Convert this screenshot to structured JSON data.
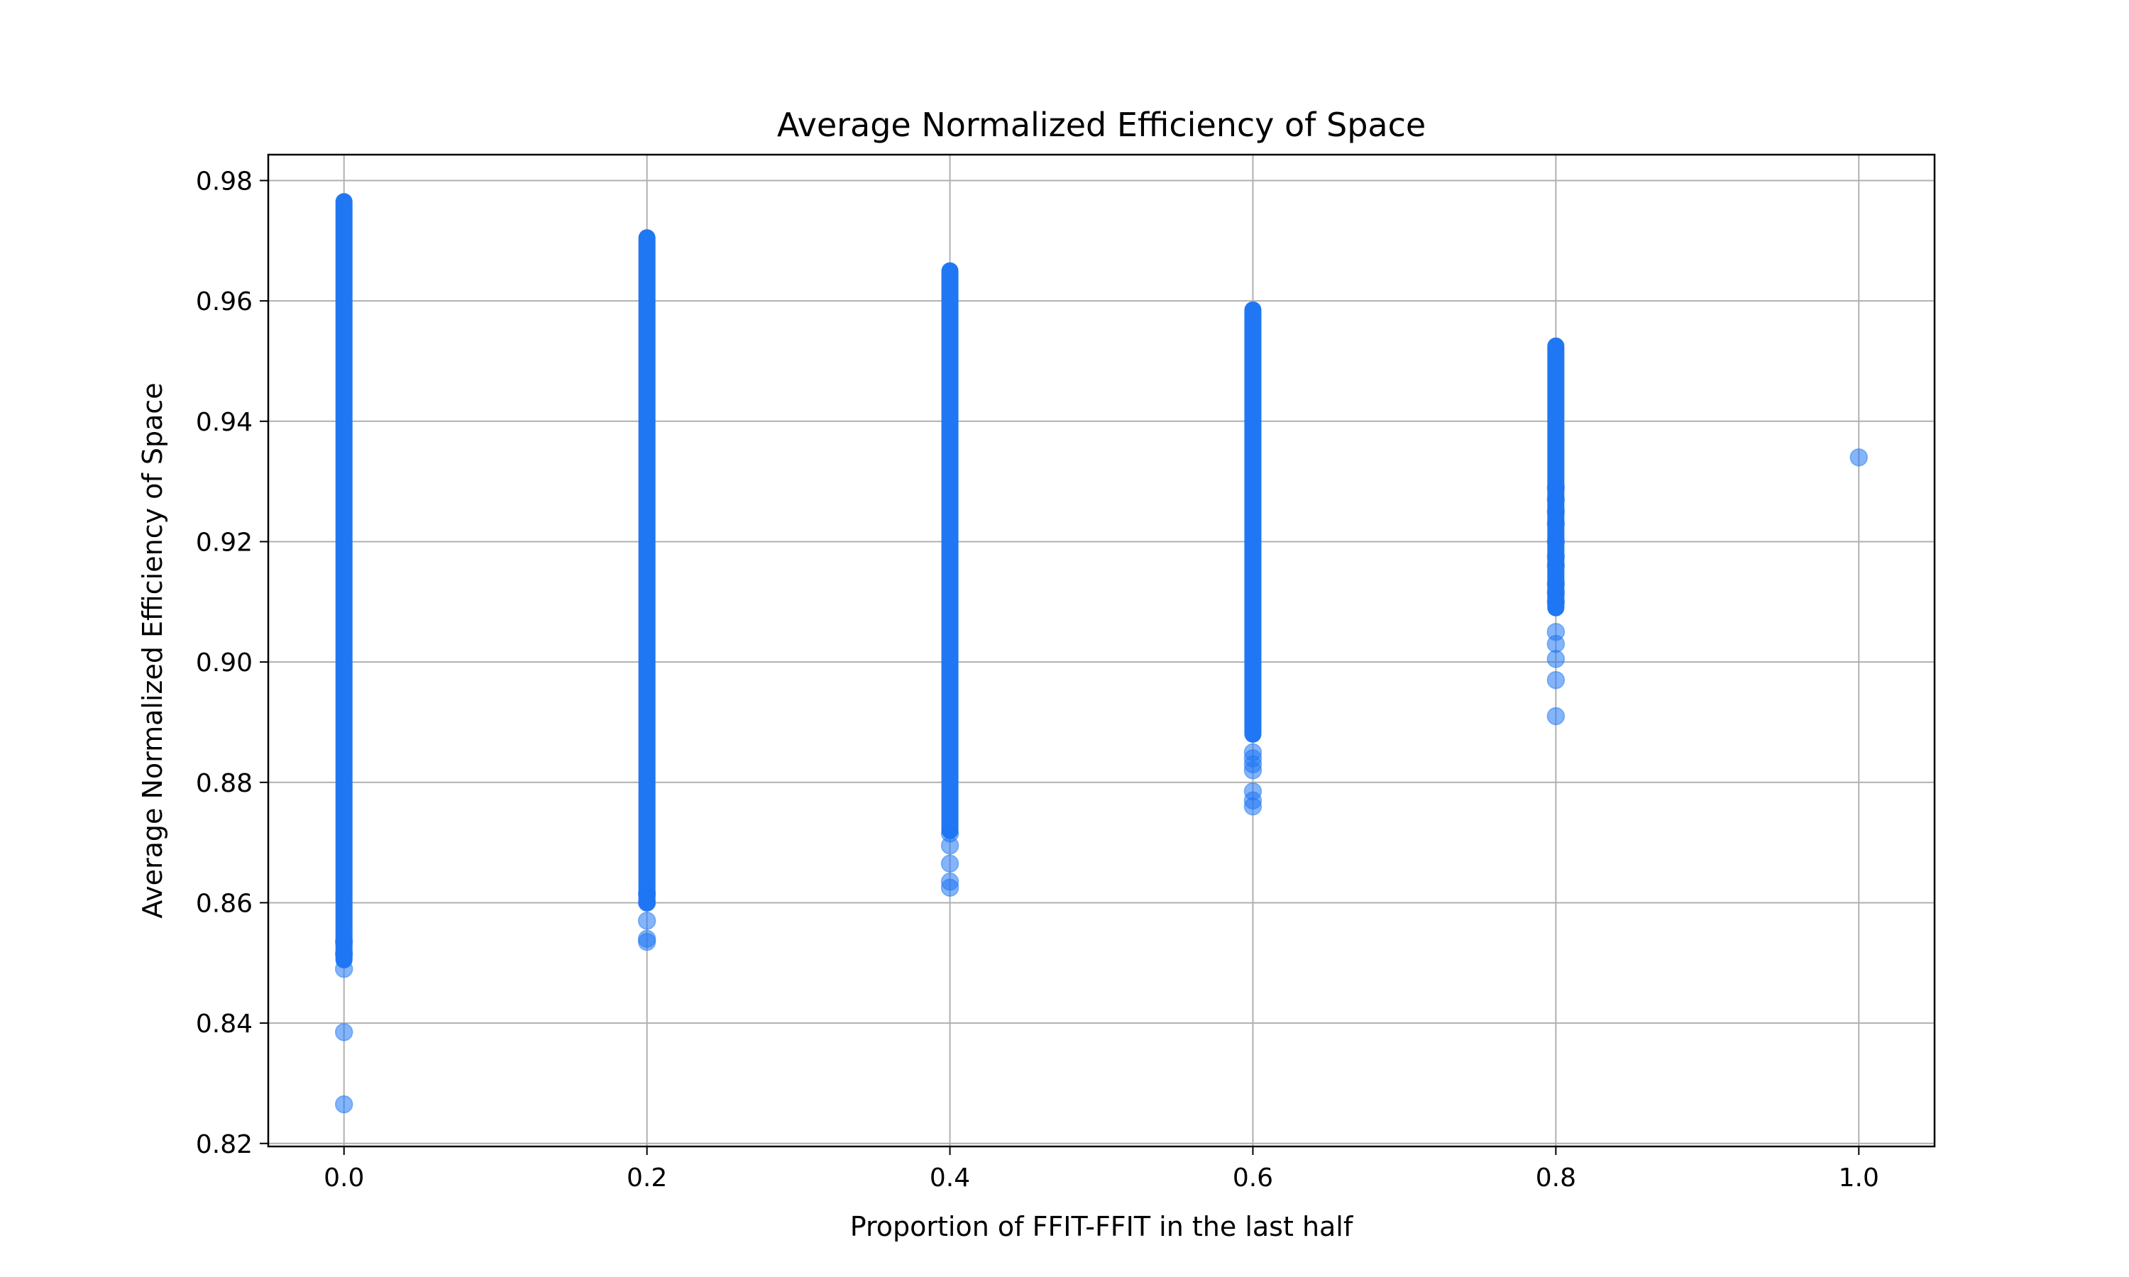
{
  "chart_data": {
    "type": "scatter",
    "title": "Average Normalized Efficiency of Space",
    "xlabel": "Proportion of FFIT-FFIT in the last half",
    "ylabel": "Average Normalized Efficiency of Space",
    "xlim": [
      -0.05,
      1.05
    ],
    "ylim": [
      0.8195,
      0.9843
    ],
    "x_ticks": [
      0.0,
      0.2,
      0.4,
      0.6,
      0.8,
      1.0
    ],
    "x_tick_labels": [
      "0.0",
      "0.2",
      "0.4",
      "0.6",
      "0.8",
      "1.0"
    ],
    "y_ticks": [
      0.82,
      0.84,
      0.86,
      0.88,
      0.9,
      0.92,
      0.94,
      0.96,
      0.98
    ],
    "y_tick_labels": [
      "0.82",
      "0.84",
      "0.86",
      "0.88",
      "0.90",
      "0.92",
      "0.94",
      "0.96",
      "0.98"
    ],
    "grid": true,
    "marker_color": "#1f77f4",
    "marker_alpha": 0.55,
    "groups": [
      {
        "x": 0.0,
        "dense_range": [
          0.8505,
          0.9765
        ],
        "outliers": [
          0.8265,
          0.8385,
          0.849,
          0.8515,
          0.8535
        ]
      },
      {
        "x": 0.2,
        "dense_range": [
          0.86,
          0.9705
        ],
        "outliers": [
          0.8535,
          0.854,
          0.857,
          0.86,
          0.8615
        ]
      },
      {
        "x": 0.4,
        "dense_range": [
          0.872,
          0.965
        ],
        "outliers": [
          0.8625,
          0.8635,
          0.8665,
          0.8695,
          0.8715
        ]
      },
      {
        "x": 0.6,
        "dense_range": [
          0.888,
          0.9585
        ],
        "outliers": [
          0.876,
          0.877,
          0.8785,
          0.882,
          0.883,
          0.884,
          0.885
        ]
      },
      {
        "x": 0.8,
        "dense_range": [
          0.909,
          0.9525
        ],
        "outliers": [
          0.891,
          0.897,
          0.9005,
          0.903,
          0.905,
          0.91,
          0.9115,
          0.913,
          0.916,
          0.9175,
          0.92,
          0.923,
          0.925,
          0.927,
          0.929
        ]
      },
      {
        "x": 1.0,
        "dense_range": null,
        "outliers": [
          0.934
        ]
      }
    ]
  }
}
